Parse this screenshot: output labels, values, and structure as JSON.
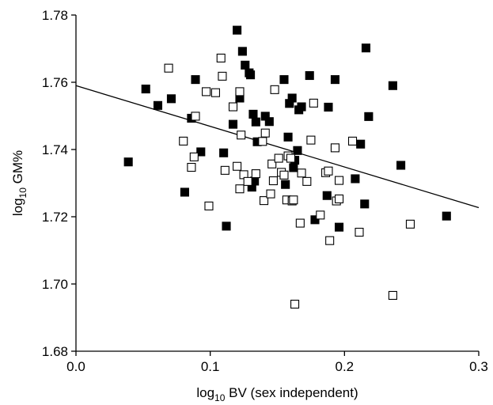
{
  "chart_data": {
    "type": "scatter",
    "title": "",
    "xlabel": {
      "main": "log",
      "sub": "10",
      "rest": " BV (sex independent)"
    },
    "ylabel": {
      "main": "log",
      "sub": "10",
      "rest": " GM%"
    },
    "xlim": [
      0.0,
      0.3
    ],
    "ylim": [
      1.68,
      1.78
    ],
    "x_ticks": [
      0.0,
      0.1,
      0.2,
      0.3
    ],
    "x_tick_labels": [
      "0.0",
      "0.1",
      "0.2",
      "0.3"
    ],
    "y_ticks": [
      1.68,
      1.7,
      1.72,
      1.74,
      1.76,
      1.78
    ],
    "y_tick_labels": [
      "1.68",
      "1.70",
      "1.72",
      "1.74",
      "1.76",
      "1.78"
    ],
    "grid": false,
    "marker_colors": {
      "filled": "#000000",
      "open": "#ffffff"
    },
    "series": [
      {
        "marker": "filled-square",
        "points": [
          [
            0.039,
            1.7363
          ],
          [
            0.052,
            1.758
          ],
          [
            0.061,
            1.7531
          ],
          [
            0.071,
            1.7551
          ],
          [
            0.081,
            1.7273
          ],
          [
            0.086,
            1.7493
          ],
          [
            0.089,
            1.7608
          ],
          [
            0.093,
            1.7393
          ],
          [
            0.11,
            1.739
          ],
          [
            0.112,
            1.7172
          ],
          [
            0.117,
            1.7475
          ],
          [
            0.12,
            1.7755
          ],
          [
            0.122,
            1.7553
          ],
          [
            0.124,
            1.7692
          ],
          [
            0.126,
            1.7651
          ],
          [
            0.129,
            1.7628
          ],
          [
            0.13,
            1.7622
          ],
          [
            0.131,
            1.7288
          ],
          [
            0.132,
            1.7505
          ],
          [
            0.133,
            1.7306
          ],
          [
            0.134,
            1.7482
          ],
          [
            0.135,
            1.7423
          ],
          [
            0.141,
            1.7499
          ],
          [
            0.144,
            1.7483
          ],
          [
            0.155,
            1.7608
          ],
          [
            0.156,
            1.7296
          ],
          [
            0.158,
            1.7437
          ],
          [
            0.159,
            1.7537
          ],
          [
            0.161,
            1.7553
          ],
          [
            0.162,
            1.7346
          ],
          [
            0.163,
            1.7368
          ],
          [
            0.165,
            1.7397
          ],
          [
            0.166,
            1.7518
          ],
          [
            0.168,
            1.7527
          ],
          [
            0.174,
            1.762
          ],
          [
            0.178,
            1.7191
          ],
          [
            0.187,
            1.7263
          ],
          [
            0.188,
            1.7526
          ],
          [
            0.193,
            1.7608
          ],
          [
            0.196,
            1.7169
          ],
          [
            0.208,
            1.7313
          ],
          [
            0.212,
            1.7416
          ],
          [
            0.215,
            1.7238
          ],
          [
            0.216,
            1.7702
          ],
          [
            0.218,
            1.7498
          ],
          [
            0.236,
            1.759
          ],
          [
            0.242,
            1.7353
          ],
          [
            0.276,
            1.7202
          ]
        ]
      },
      {
        "marker": "open-square",
        "points": [
          [
            0.069,
            1.7642
          ],
          [
            0.08,
            1.7425
          ],
          [
            0.086,
            1.7347
          ],
          [
            0.088,
            1.7378
          ],
          [
            0.089,
            1.7499
          ],
          [
            0.097,
            1.7572
          ],
          [
            0.099,
            1.7232
          ],
          [
            0.104,
            1.7569
          ],
          [
            0.108,
            1.7672
          ],
          [
            0.109,
            1.7618
          ],
          [
            0.111,
            1.7338
          ],
          [
            0.117,
            1.7527
          ],
          [
            0.12,
            1.735
          ],
          [
            0.122,
            1.7283
          ],
          [
            0.122,
            1.7572
          ],
          [
            0.123,
            1.7443
          ],
          [
            0.125,
            1.7325
          ],
          [
            0.128,
            1.7305
          ],
          [
            0.134,
            1.7328
          ],
          [
            0.139,
            1.7424
          ],
          [
            0.14,
            1.7248
          ],
          [
            0.141,
            1.7449
          ],
          [
            0.145,
            1.7268
          ],
          [
            0.146,
            1.7357
          ],
          [
            0.147,
            1.7307
          ],
          [
            0.148,
            1.7578
          ],
          [
            0.151,
            1.7374
          ],
          [
            0.153,
            1.7332
          ],
          [
            0.155,
            1.7324
          ],
          [
            0.157,
            1.725
          ],
          [
            0.158,
            1.7381
          ],
          [
            0.16,
            1.7374
          ],
          [
            0.161,
            1.7247
          ],
          [
            0.162,
            1.725
          ],
          [
            0.163,
            1.694
          ],
          [
            0.167,
            1.7181
          ],
          [
            0.168,
            1.733
          ],
          [
            0.172,
            1.7305
          ],
          [
            0.175,
            1.7428
          ],
          [
            0.177,
            1.7538
          ],
          [
            0.182,
            1.7205
          ],
          [
            0.186,
            1.7331
          ],
          [
            0.188,
            1.7336
          ],
          [
            0.189,
            1.7129
          ],
          [
            0.193,
            1.7405
          ],
          [
            0.194,
            1.7247
          ],
          [
            0.196,
            1.7253
          ],
          [
            0.196,
            1.7308
          ],
          [
            0.206,
            1.7425
          ],
          [
            0.211,
            1.7154
          ],
          [
            0.236,
            1.6966
          ],
          [
            0.249,
            1.7178
          ]
        ]
      }
    ],
    "trendline": {
      "type": "linear",
      "x": [
        0.0,
        0.3
      ],
      "y": [
        1.759,
        1.7227
      ]
    }
  }
}
